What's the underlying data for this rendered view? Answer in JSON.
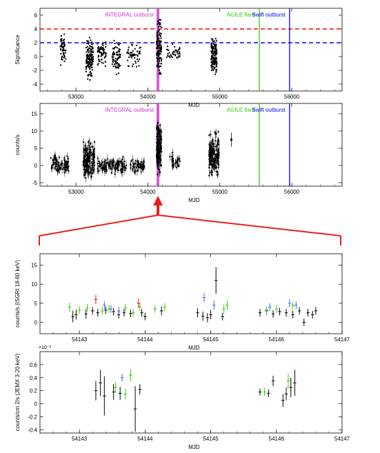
{
  "chart_data": [
    {
      "type": "scatter",
      "panel": "significance",
      "xlabel": "MJD",
      "ylabel": "Significance",
      "xlim": [
        52500,
        56700
      ],
      "ylim": [
        -5,
        7
      ],
      "xticks": [
        53000,
        54000,
        55000,
        56000
      ],
      "yticks": [
        -4,
        -2,
        0,
        2,
        4,
        6
      ],
      "hlines": [
        {
          "y": 4,
          "color": "#ff0000",
          "style": "dashed"
        },
        {
          "y": 2,
          "color": "#0000ff",
          "style": "dashed"
        }
      ],
      "vlines": [
        {
          "x": 54140,
          "color": "#cc33cc",
          "width": "thick",
          "label": "INTEGRAL outburst"
        },
        {
          "x": 55550,
          "color": "#33cc00",
          "label": "AGILE flare"
        },
        {
          "x": 55970,
          "color": "#0000ff",
          "label": "Swift outburst"
        }
      ],
      "clusters": [
        {
          "x": [
            52780,
            52860
          ],
          "y": [
            -2,
            4
          ],
          "n": 60
        },
        {
          "x": [
            53140,
            53240
          ],
          "y": [
            -4,
            3.5
          ],
          "n": 140
        },
        {
          "x": [
            53300,
            53420
          ],
          "y": [
            -2,
            3
          ],
          "n": 70
        },
        {
          "x": [
            53500,
            53620
          ],
          "y": [
            -3,
            3
          ],
          "n": 80
        },
        {
          "x": [
            53700,
            53900
          ],
          "y": [
            -2,
            2.5
          ],
          "n": 50
        },
        {
          "x": [
            54120,
            54190
          ],
          "y": [
            -4,
            6.5
          ],
          "n": 140
        },
        {
          "x": [
            54250,
            54450
          ],
          "y": [
            -1,
            2
          ],
          "n": 40
        },
        {
          "x": [
            54880,
            54960
          ],
          "y": [
            -4,
            3.5
          ],
          "n": 150
        }
      ]
    },
    {
      "type": "scatter",
      "panel": "count_rate",
      "xlabel": "MJD",
      "ylabel": "counts/s",
      "xlim": [
        52500,
        56700
      ],
      "ylim": [
        -6,
        18
      ],
      "xticks": [
        53000,
        54000,
        55000,
        56000
      ],
      "yticks": [
        -5,
        0,
        5,
        10,
        15
      ],
      "vlines": [
        {
          "x": 54140,
          "color": "#cc33cc",
          "width": "thick",
          "label": "INTEGRAL outburst"
        },
        {
          "x": 55550,
          "color": "#33cc00",
          "label": "AGILE flare"
        },
        {
          "x": 55970,
          "color": "#0000ff",
          "label": "Swift outburst"
        }
      ],
      "clusters": [
        {
          "x": [
            52650,
            52900
          ],
          "y": [
            -3,
            4
          ],
          "n": 80
        },
        {
          "x": [
            53100,
            53260
          ],
          "y": [
            -5,
            8
          ],
          "n": 160
        },
        {
          "x": [
            53300,
            53700
          ],
          "y": [
            -3,
            3
          ],
          "n": 120
        },
        {
          "x": [
            53750,
            53950
          ],
          "y": [
            -3,
            3
          ],
          "n": 60
        },
        {
          "x": [
            54120,
            54190
          ],
          "y": [
            -5,
            15
          ],
          "n": 150
        },
        {
          "x": [
            54300,
            54450
          ],
          "y": [
            -2,
            4
          ],
          "n": 30
        },
        {
          "x": [
            54850,
            54990
          ],
          "y": [
            -5,
            11
          ],
          "n": 160
        }
      ],
      "points": [
        {
          "x": 55160,
          "y": 7.5,
          "err": 2
        }
      ],
      "zoom_arrow": {
        "x": 54140
      }
    },
    {
      "type": "scatter",
      "panel": "isgri",
      "xlabel": "MJD",
      "ylabel": "counts/s (ISGRI 18-60 keV)",
      "xlim": [
        54142.4,
        54147
      ],
      "ylim": [
        -3,
        18
      ],
      "xticks": [
        54143,
        54144,
        54145,
        54146,
        54147
      ],
      "yticks": [
        0,
        5,
        10,
        15
      ],
      "series": [
        {
          "color": "#000000",
          "points": [
            [
              54142.9,
              1.5,
              1.5
            ],
            [
              54142.95,
              2.0,
              1.3
            ],
            [
              54143.1,
              2.2,
              1.2
            ],
            [
              54143.2,
              3.0,
              1.0
            ],
            [
              54143.28,
              2.5,
              1.0
            ],
            [
              54143.4,
              3.2,
              1.0
            ],
            [
              54143.52,
              2.8,
              1.0
            ],
            [
              54143.6,
              2.0,
              1.0
            ],
            [
              54143.68,
              2.5,
              1.0
            ],
            [
              54143.78,
              2.3,
              1.0
            ],
            [
              54143.95,
              2.5,
              1.0
            ],
            [
              54144.0,
              1.5,
              1.0
            ],
            [
              54144.25,
              3.0,
              1.2
            ],
            [
              54144.8,
              2.5,
              1.2
            ],
            [
              54144.88,
              1.6,
              1.2
            ],
            [
              54144.95,
              1.2,
              1.2
            ],
            [
              54145.0,
              2.0,
              1.2
            ],
            [
              54145.08,
              11.0,
              3.5
            ],
            [
              54145.18,
              1.5,
              1.0
            ],
            [
              54145.75,
              2.5,
              1.0
            ],
            [
              54145.85,
              3.0,
              1.0
            ],
            [
              54145.95,
              2.2,
              1.0
            ],
            [
              54146.05,
              2.8,
              1.0
            ],
            [
              54146.15,
              2.5,
              1.0
            ],
            [
              54146.25,
              2.0,
              1.0
            ],
            [
              54146.35,
              3.0,
              1.0
            ],
            [
              54146.42,
              0.0,
              1.0
            ],
            [
              54146.48,
              2.5,
              1.0
            ],
            [
              54146.55,
              2.0,
              1.0
            ],
            [
              54146.6,
              3.0,
              1.0
            ]
          ]
        },
        {
          "color": "#33cc00",
          "points": [
            [
              54142.85,
              4.0,
              1.2
            ],
            [
              54143.0,
              3.2,
              1.0
            ],
            [
              54143.12,
              3.8,
              1.0
            ],
            [
              54143.35,
              3.0,
              1.0
            ],
            [
              54143.45,
              3.5,
              1.0
            ],
            [
              54143.7,
              3.8,
              1.0
            ],
            [
              54143.82,
              2.5,
              1.0
            ],
            [
              54143.92,
              4.0,
              1.0
            ],
            [
              54144.15,
              3.5,
              1.0
            ],
            [
              54144.3,
              4.0,
              1.0
            ],
            [
              54145.2,
              3.5,
              1.2
            ],
            [
              54145.25,
              4.5,
              1.2
            ],
            [
              54145.85,
              3.2,
              1.0
            ],
            [
              54146.0,
              3.5,
              1.0
            ],
            [
              54146.25,
              4.5,
              1.0
            ]
          ]
        },
        {
          "color": "#ff0000",
          "points": [
            [
              54143.25,
              6.0,
              1.2
            ],
            [
              54143.9,
              5.0,
              1.2
            ]
          ]
        },
        {
          "color": "#3366ff",
          "points": [
            [
              54143.38,
              4.5,
              1.0
            ],
            [
              54143.48,
              3.5,
              1.0
            ],
            [
              54143.6,
              3.0,
              1.0
            ],
            [
              54144.9,
              6.5,
              1.2
            ],
            [
              54145.05,
              4.5,
              1.2
            ],
            [
              54145.9,
              4.0,
              1.0
            ],
            [
              54146.2,
              5.0,
              1.0
            ],
            [
              54146.3,
              4.5,
              1.0
            ]
          ]
        }
      ]
    },
    {
      "type": "scatter",
      "panel": "jemx",
      "xlabel": "MJD",
      "ylabel": "counts/cm 2/s (JEMX 3-20 keV)",
      "axis_multiplier": "×10⁻²",
      "xlim": [
        54142.4,
        54147
      ],
      "ylim": [
        -0.45,
        0.8
      ],
      "xticks": [
        54143,
        54144,
        54145,
        54146,
        54147
      ],
      "yticks": [
        -0.4,
        -0.2,
        0,
        0.2,
        0.4,
        0.6
      ],
      "yticklabels": [
        "-0.4",
        "-0.2",
        "0",
        "0.2",
        "0.4",
        "0.6"
      ],
      "series": [
        {
          "color": "#000000",
          "points": [
            [
              54143.25,
              0.2,
              0.15
            ],
            [
              54143.32,
              0.32,
              0.2
            ],
            [
              54143.38,
              0.12,
              0.3
            ],
            [
              54143.52,
              0.18,
              0.12
            ],
            [
              54143.62,
              0.16,
              0.1
            ],
            [
              54143.85,
              -0.08,
              0.35
            ],
            [
              54143.92,
              0.22,
              0.08
            ],
            [
              54145.75,
              0.18,
              0.05
            ],
            [
              54145.88,
              0.16,
              0.06
            ],
            [
              54145.95,
              0.35,
              0.08
            ],
            [
              54146.1,
              0.05,
              0.1
            ],
            [
              54146.15,
              0.15,
              0.1
            ],
            [
              54146.22,
              0.25,
              0.15
            ],
            [
              54146.28,
              0.32,
              0.2
            ]
          ]
        },
        {
          "color": "#33cc00",
          "points": [
            [
              54143.55,
              0.25,
              0.08
            ],
            [
              54143.7,
              0.15,
              0.08
            ],
            [
              54143.78,
              0.44,
              0.1
            ],
            [
              54145.82,
              0.18,
              0.06
            ],
            [
              54146.18,
              0.35,
              0.12
            ]
          ]
        },
        {
          "color": "#3366ff",
          "points": [
            [
              54143.65,
              0.4,
              0.06
            ]
          ]
        }
      ]
    }
  ]
}
